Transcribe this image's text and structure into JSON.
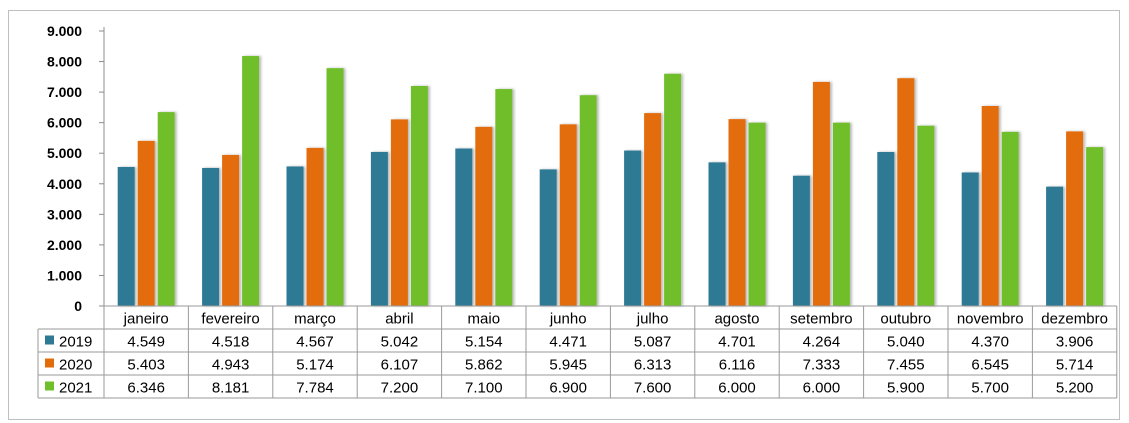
{
  "chart_data": {
    "type": "bar",
    "categories": [
      "janeiro",
      "fevereiro",
      "março",
      "abril",
      "maio",
      "junho",
      "julho",
      "agosto",
      "setembro",
      "outubro",
      "novembro",
      "dezembro"
    ],
    "series": [
      {
        "name": "2019",
        "color": "#2e7a94",
        "values": [
          4549,
          4518,
          4567,
          5042,
          5154,
          4471,
          5087,
          4701,
          4264,
          5040,
          4370,
          3906
        ],
        "labels": [
          "4.549",
          "4.518",
          "4.567",
          "5.042",
          "5.154",
          "4.471",
          "5.087",
          "4.701",
          "4.264",
          "5.040",
          "4.370",
          "3.906"
        ]
      },
      {
        "name": "2020",
        "color": "#e36c0a",
        "values": [
          5403,
          4943,
          5174,
          6107,
          5862,
          5945,
          6313,
          6116,
          7333,
          7455,
          6545,
          5714
        ],
        "labels": [
          "5.403",
          "4.943",
          "5.174",
          "6.107",
          "5.862",
          "5.945",
          "6.313",
          "6.116",
          "7.333",
          "7.455",
          "6.545",
          "5.714"
        ]
      },
      {
        "name": "2021",
        "color": "#6fbf2a",
        "values": [
          6346,
          8181,
          7784,
          7200,
          7100,
          6900,
          7600,
          6000,
          6000,
          5900,
          5700,
          5200
        ],
        "labels": [
          "6.346",
          "8.181",
          "7.784",
          "7.200",
          "7.100",
          "6.900",
          "7.600",
          "6.000",
          "6.000",
          "5.900",
          "5.700",
          "5.200"
        ]
      }
    ],
    "yticks": [
      0,
      1000,
      2000,
      3000,
      4000,
      5000,
      6000,
      7000,
      8000,
      9000
    ],
    "ytick_labels": [
      "0",
      "1.000",
      "2.000",
      "3.000",
      "4.000",
      "5.000",
      "6.000",
      "7.000",
      "8.000",
      "9.000"
    ],
    "ylim": [
      0,
      9000
    ],
    "grid": false,
    "legend": "data-table",
    "title": "",
    "xlabel": "",
    "ylabel": ""
  }
}
